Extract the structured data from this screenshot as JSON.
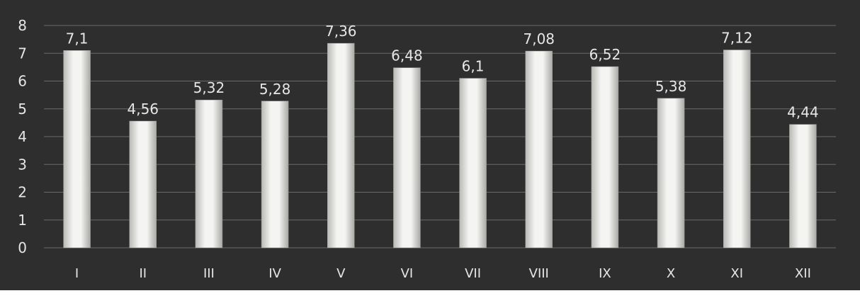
{
  "chart_data": {
    "type": "bar",
    "categories": [
      "I",
      "II",
      "III",
      "IV",
      "V",
      "VI",
      "VII",
      "VIII",
      "IX",
      "X",
      "XI",
      "XII"
    ],
    "values": [
      7.1,
      4.56,
      5.32,
      5.28,
      7.36,
      6.48,
      6.1,
      7.08,
      6.52,
      5.38,
      7.12,
      4.44
    ],
    "data_labels": [
      "7,1",
      "4,56",
      "5,32",
      "5,28",
      "7,36",
      "6,48",
      "6,1",
      "7,08",
      "6,52",
      "5,38",
      "7,12",
      "4,44"
    ],
    "y_ticks": [
      "0",
      "1",
      "2",
      "3",
      "4",
      "5",
      "6",
      "7",
      "8"
    ],
    "ylim": [
      0,
      8
    ],
    "grid": true,
    "legend": "none",
    "colors": {
      "background": "#2e2e2e",
      "bar": "#e8e8e6",
      "text": "#e6e6e6",
      "grid": "#6a6a6a"
    }
  }
}
